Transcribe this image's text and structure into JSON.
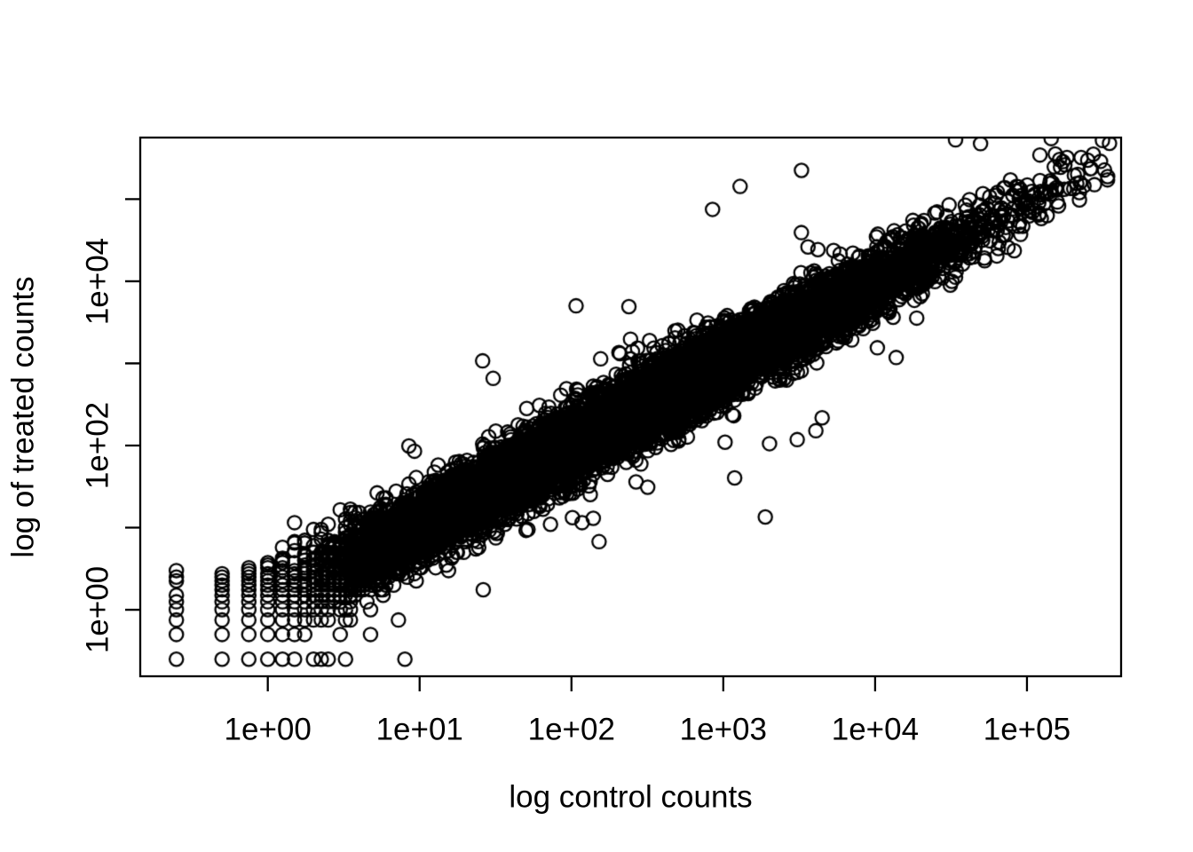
{
  "chart_data": {
    "type": "scatter",
    "title": "",
    "xlabel": "log control counts",
    "ylabel": "log of treated counts",
    "x_scale": "log10",
    "y_scale": "log10",
    "x_range_log10": [
      -0.84,
      5.62
    ],
    "y_range_log10": [
      -0.81,
      5.75
    ],
    "x_ticks": [
      {
        "log10": 0,
        "label": "1e+00"
      },
      {
        "log10": 1,
        "label": "1e+01"
      },
      {
        "log10": 2,
        "label": "1e+02"
      },
      {
        "log10": 3,
        "label": "1e+03"
      },
      {
        "log10": 4,
        "label": "1e+04"
      },
      {
        "log10": 5,
        "label": "1e+05"
      }
    ],
    "y_ticks": [
      {
        "log10": 0,
        "label": "1e+00"
      },
      {
        "log10": 1,
        "label": ""
      },
      {
        "log10": 2,
        "label": "1e+02"
      },
      {
        "log10": 3,
        "label": ""
      },
      {
        "log10": 4,
        "label": "1e+04"
      },
      {
        "log10": 5,
        "label": ""
      }
    ],
    "grid": "off",
    "legend": "none",
    "marker": {
      "shape": "open-circle",
      "stroke_color": "#000000",
      "fill": "none",
      "radius_px": 7.6,
      "stroke_width_px": 2.3
    },
    "frame_color": "#000000",
    "background_color": "#ffffff",
    "relationship": "treated counts approximately equal control counts (dense diagonal band y = x on log-log axes), with quarter-count quantization stripes at low counts and sparse tail to ~3e5",
    "generator": {
      "n_points": 12000,
      "seed": 7,
      "log10_mean_expression_mu": 2.3,
      "log10_mean_expression_sigma": 1.05,
      "log10_mean_max": 5.45,
      "log10_mean_min": -0.9,
      "per_axis_biological_sd_log10": 0.14,
      "outlier_fraction": 0.02,
      "outlier_sd_log10": 0.45,
      "extreme_outlier_fraction": 0.004,
      "extreme_outlier_sd_log10": 1.2,
      "count_quantum": 0.25,
      "min_plotted_count": 0.25
    }
  }
}
